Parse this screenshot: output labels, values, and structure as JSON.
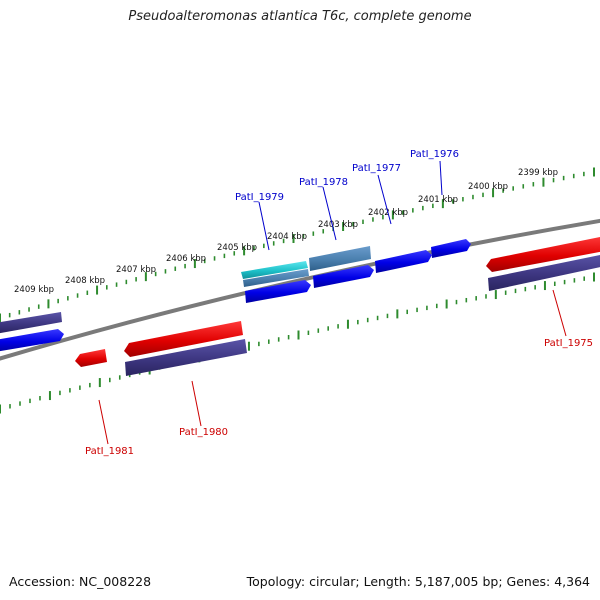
{
  "title": "Pseudoalteromonas atlantica T6c, complete genome",
  "footer": {
    "accession": "Accession: NC_008228",
    "summary": "Topology: circular; Length: 5,187,005 bp; Genes: 4,364"
  },
  "kbp_labels": [
    "2399 kbp",
    "2400 kbp",
    "2401 kbp",
    "2402 kbp",
    "2403 kbp",
    "2404 kbp",
    "2405 kbp",
    "2406 kbp",
    "2407 kbp",
    "2408 kbp",
    "2409 kbp"
  ],
  "gene_labels": {
    "patl_1975": "PatI_1975",
    "patl_1976": "PatI_1976",
    "patl_1977": "PatI_1977",
    "patl_1978": "PatI_1978",
    "patl_1979": "PatI_1979",
    "patl_1980": "PatI_1980",
    "patl_1981": "PatI_1981"
  },
  "colors": {
    "backbone": "#808080",
    "tick": "#2e8b2e",
    "cds_forward": "#0000ee",
    "cds_reverse": "#ee0000",
    "gene": "#3d3680",
    "highlight": "#22c4cc",
    "highlight_gene": "#4a7fae",
    "label_forward": "#0000cc",
    "label_reverse": "#cc0000"
  }
}
